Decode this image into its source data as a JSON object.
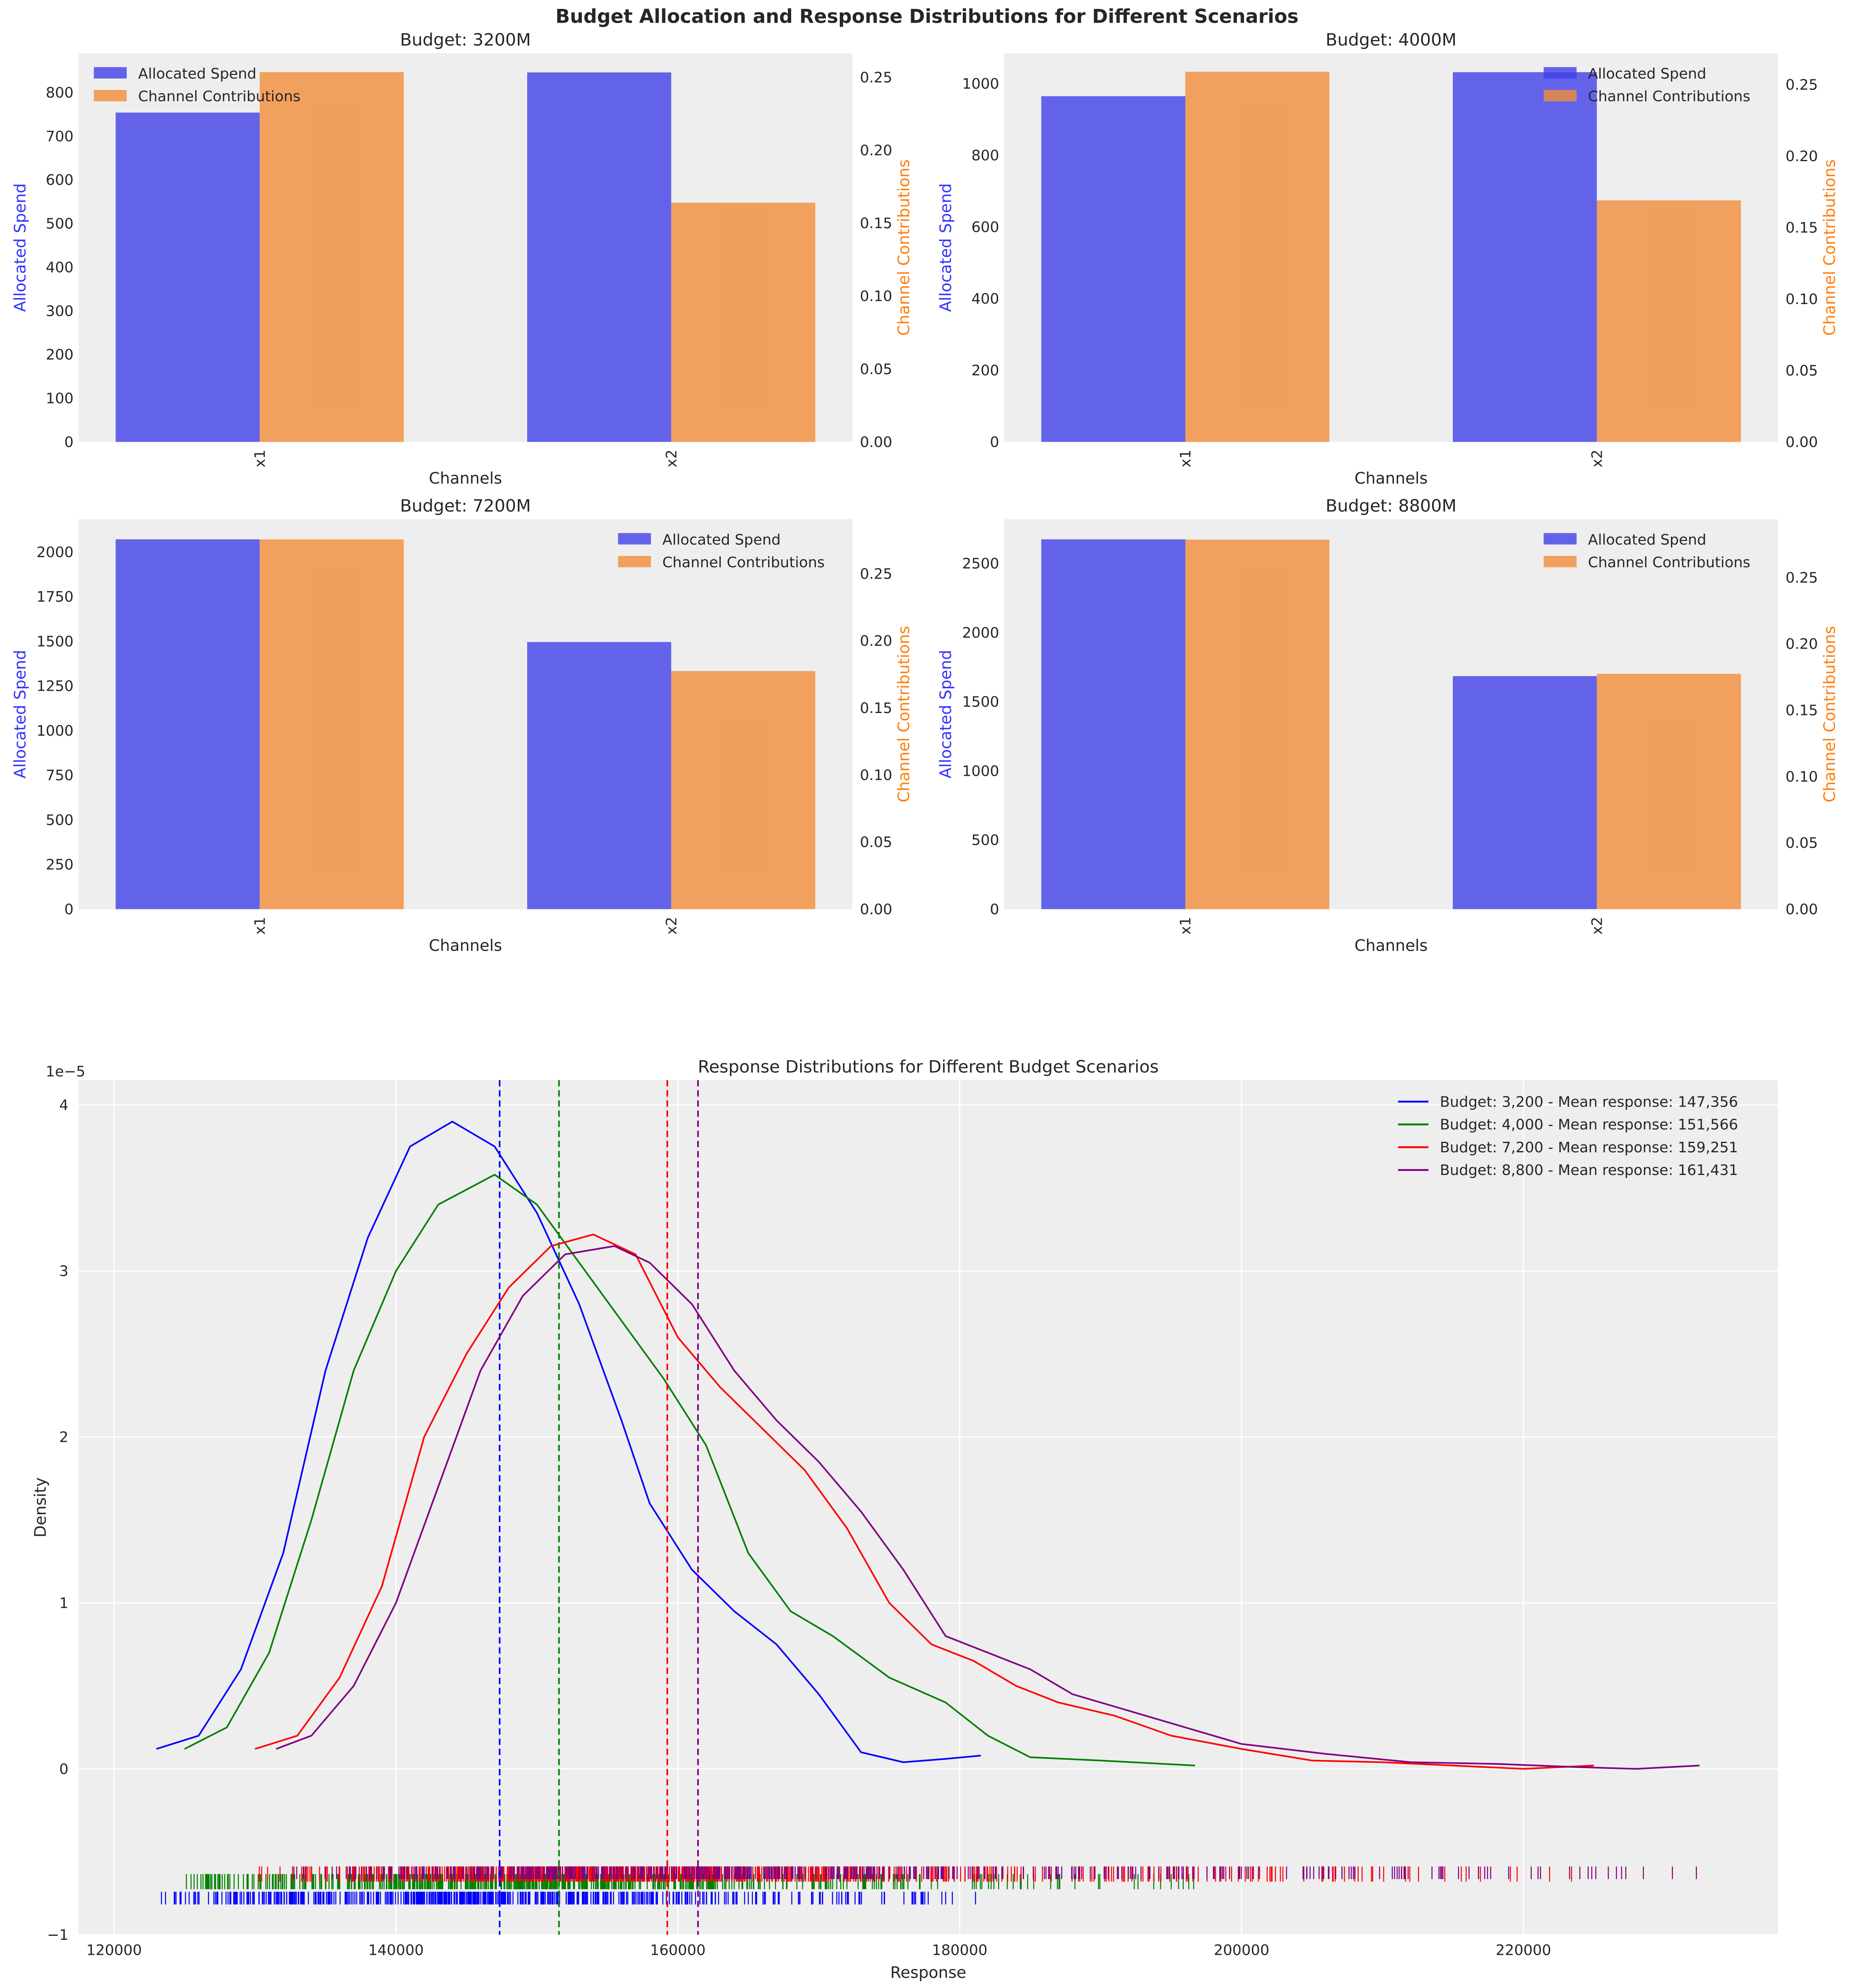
{
  "title": "Budget Allocation and Response Distributions for Different Scenarios",
  "colors": {
    "spend": "#4040e8",
    "contrib": "#f28c38",
    "spend_label": "#3333ff",
    "contrib_label": "#ff7f0e",
    "panel_bg": "#eeeeee",
    "grid": "#ffffff"
  },
  "chart_data": [
    {
      "type": "bar",
      "title": "Budget: 3200M",
      "xlabel": "Channels",
      "ylabel": "Allocated Spend",
      "y2label": "Channel Contributions",
      "categories": [
        "x1",
        "x2"
      ],
      "series": [
        {
          "name": "Allocated Spend",
          "axis": "left",
          "values": [
            754,
            846
          ]
        },
        {
          "name": "Channel Contributions",
          "axis": "right",
          "values": [
            0.2535,
            0.164
          ]
        }
      ],
      "ylim": [
        0,
        890
      ],
      "yticks": [
        0,
        100,
        200,
        300,
        400,
        500,
        600,
        700,
        800
      ],
      "y2lim": [
        0,
        0.2665
      ],
      "y2ticks": [
        "0.00",
        "0.05",
        "0.10",
        "0.15",
        "0.20",
        "0.25"
      ],
      "legend": "upper-left"
    },
    {
      "type": "bar",
      "title": "Budget: 4000M",
      "xlabel": "Channels",
      "ylabel": "Allocated Spend",
      "y2label": "Channel Contributions",
      "categories": [
        "x1",
        "x2"
      ],
      "series": [
        {
          "name": "Allocated Spend",
          "axis": "left",
          "values": [
            965,
            1032
          ]
        },
        {
          "name": "Channel Contributions",
          "axis": "right",
          "values": [
            0.259,
            0.169
          ]
        }
      ],
      "ylim": [
        0,
        1085
      ],
      "yticks": [
        0,
        200,
        400,
        600,
        800,
        1000
      ],
      "y2lim": [
        0,
        0.272
      ],
      "y2ticks": [
        "0.00",
        "0.05",
        "0.10",
        "0.15",
        "0.20",
        "0.25"
      ],
      "legend": "upper-right"
    },
    {
      "type": "bar",
      "title": "Budget: 7200M",
      "xlabel": "Channels",
      "ylabel": "Allocated Spend",
      "y2label": "Channel Contributions",
      "categories": [
        "x1",
        "x2"
      ],
      "series": [
        {
          "name": "Allocated Spend",
          "axis": "left",
          "values": [
            2071,
            1496
          ]
        },
        {
          "name": "Channel Contributions",
          "axis": "right",
          "values": [
            0.2755,
            0.1774
          ]
        }
      ],
      "ylim": [
        0,
        2184
      ],
      "yticks": [
        0,
        250,
        500,
        750,
        1000,
        1250,
        1500,
        1750,
        2000
      ],
      "y2lim": [
        0,
        0.2906
      ],
      "y2ticks": [
        "0.00",
        "0.05",
        "0.10",
        "0.15",
        "0.20",
        "0.25"
      ],
      "legend": "upper-right"
    },
    {
      "type": "bar",
      "title": "Budget: 8800M",
      "xlabel": "Channels",
      "ylabel": "Allocated Spend",
      "y2label": "Channel Contributions",
      "categories": [
        "x1",
        "x2"
      ],
      "series": [
        {
          "name": "Allocated Spend",
          "axis": "left",
          "values": [
            2674,
            1685
          ]
        },
        {
          "name": "Channel Contributions",
          "axis": "right",
          "values": [
            0.2786,
            0.1774
          ]
        }
      ],
      "ylim": [
        0,
        2820
      ],
      "yticks": [
        0,
        500,
        1000,
        1500,
        2000,
        2500
      ],
      "y2lim": [
        0,
        0.294
      ],
      "y2ticks": [
        "0.00",
        "0.05",
        "0.10",
        "0.15",
        "0.20",
        "0.25"
      ],
      "legend": "upper-right"
    },
    {
      "type": "line",
      "title": "Response Distributions for Different Budget Scenarios",
      "xlabel": "Response",
      "ylabel": "Density",
      "y_scale_label": "1e−5",
      "xlim": [
        117480,
        238060
      ],
      "ylim": [
        -1,
        4.15
      ],
      "xticks": [
        120000,
        140000,
        160000,
        180000,
        200000,
        220000
      ],
      "yticks": [
        -1,
        0,
        1,
        2,
        3,
        4
      ],
      "grid": true,
      "legend": "upper-right",
      "series": [
        {
          "name": "Budget: 3,200 - Mean response: 147,356",
          "color": "#0000ff",
          "mean": 147356,
          "x": [
            123000,
            126000,
            129000,
            132000,
            135000,
            138000,
            141000,
            144000,
            147000,
            150000,
            153000,
            156000,
            158000,
            161000,
            164000,
            167000,
            170000,
            173000,
            176000,
            179000,
            181500
          ],
          "y": [
            0.12,
            0.2,
            0.6,
            1.3,
            2.4,
            3.2,
            3.75,
            3.9,
            3.75,
            3.35,
            2.8,
            2.1,
            1.6,
            1.2,
            0.95,
            0.75,
            0.45,
            0.1,
            0.04,
            0.06,
            0.08
          ]
        },
        {
          "name": "Budget: 4,000 - Mean response: 151,566",
          "color": "#008000",
          "mean": 151566,
          "x": [
            125000,
            128000,
            131000,
            134000,
            137000,
            140000,
            143000,
            147000,
            150000,
            153000,
            156000,
            159000,
            162000,
            165000,
            168000,
            171000,
            175000,
            179000,
            182000,
            185000,
            190000,
            196700
          ],
          "y": [
            0.12,
            0.25,
            0.7,
            1.5,
            2.4,
            3.0,
            3.4,
            3.58,
            3.4,
            3.05,
            2.7,
            2.35,
            1.95,
            1.3,
            0.95,
            0.8,
            0.55,
            0.4,
            0.2,
            0.07,
            0.05,
            0.02
          ]
        },
        {
          "name": "Budget: 7,200 - Mean response: 159,251",
          "color": "#ff0000",
          "mean": 159251,
          "x": [
            130000,
            133000,
            136000,
            139000,
            142000,
            145000,
            148000,
            151000,
            154000,
            157000,
            160000,
            163000,
            166000,
            169000,
            172000,
            175000,
            178000,
            181000,
            184000,
            187000,
            191000,
            195000,
            200000,
            205000,
            210000,
            215000,
            220000,
            225000
          ],
          "y": [
            0.12,
            0.2,
            0.55,
            1.1,
            2.0,
            2.5,
            2.9,
            3.15,
            3.22,
            3.1,
            2.6,
            2.3,
            2.05,
            1.8,
            1.45,
            1.0,
            0.75,
            0.65,
            0.5,
            0.4,
            0.32,
            0.2,
            0.12,
            0.05,
            0.04,
            0.02,
            0.0,
            0.02
          ]
        },
        {
          "name": "Budget: 8,800 - Mean response: 161,431",
          "color": "#800080",
          "mean": 161431,
          "x": [
            131500,
            134000,
            137000,
            140000,
            143000,
            146000,
            149000,
            152000,
            155500,
            158000,
            161000,
            164000,
            167000,
            170000,
            173000,
            176000,
            179000,
            182000,
            185000,
            188000,
            192000,
            196000,
            200000,
            206000,
            212000,
            218000,
            224000,
            228000,
            232500
          ],
          "y": [
            0.12,
            0.2,
            0.5,
            1.0,
            1.7,
            2.4,
            2.85,
            3.1,
            3.15,
            3.05,
            2.8,
            2.4,
            2.1,
            1.85,
            1.55,
            1.2,
            0.8,
            0.7,
            0.6,
            0.45,
            0.35,
            0.25,
            0.15,
            0.09,
            0.04,
            0.03,
            0.01,
            0.0,
            0.02
          ]
        }
      ]
    }
  ]
}
